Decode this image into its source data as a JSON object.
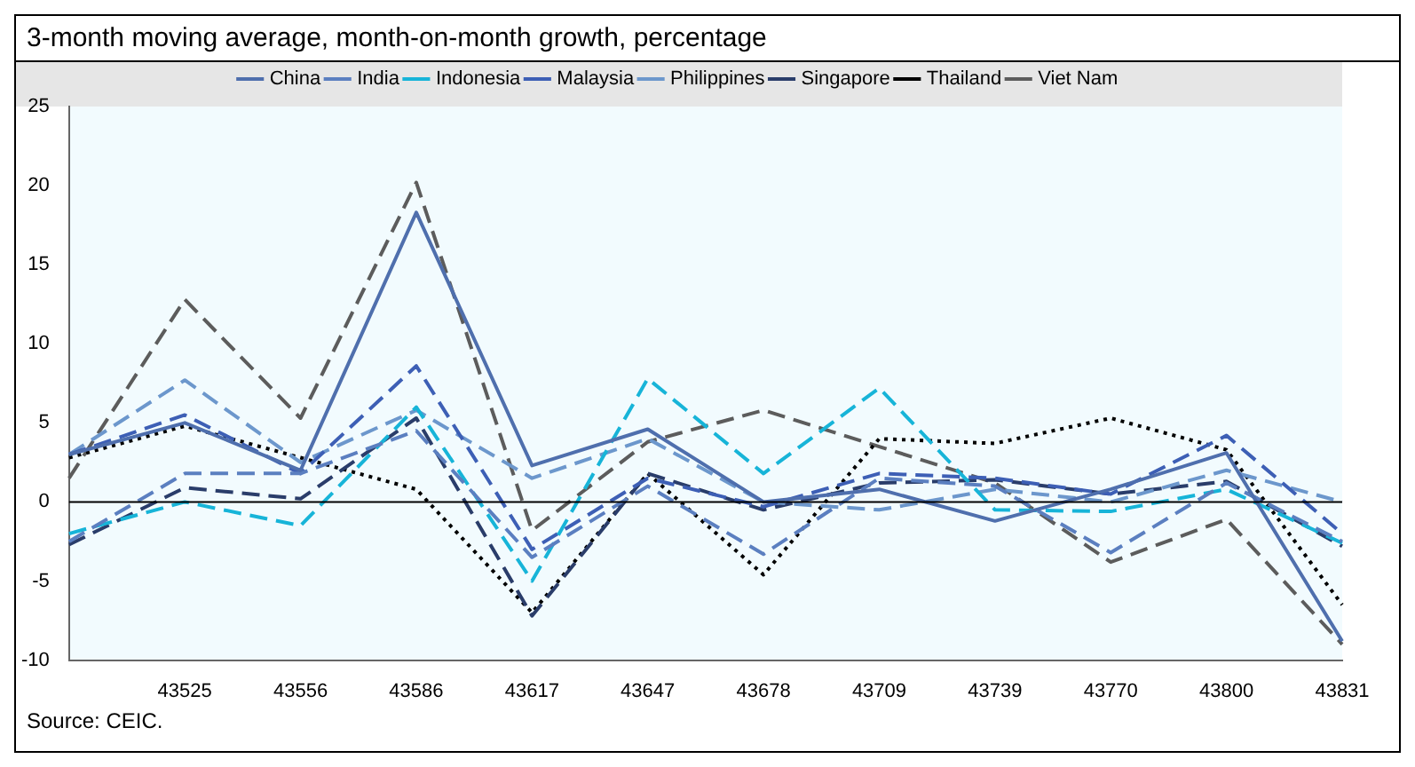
{
  "chart_data": {
    "type": "line",
    "title": "3-month moving average, month-on-month growth, percentage",
    "categories": [
      null,
      "43525",
      "43556",
      "43586",
      "43617",
      "43647",
      "43678",
      "43709",
      "43739",
      "43770",
      "43800",
      "43831"
    ],
    "series": [
      {
        "name": "China",
        "color": "#4f6fad",
        "line_style": "solid",
        "values": [
          3,
          5,
          2,
          18.3,
          2.3,
          4.6,
          0,
          0.8,
          -1.2,
          0.8,
          3.1,
          -8.8
        ]
      },
      {
        "name": "India",
        "color": "#5b7fc0",
        "line_style": "dashed",
        "values": [
          -2.5,
          1.8,
          1.8,
          4.5,
          -3.5,
          1,
          -3.3,
          1.5,
          1,
          -3.2,
          1.2,
          -2.5
        ]
      },
      {
        "name": "Indonesia",
        "color": "#17b4d8",
        "line_style": "dashed",
        "values": [
          -2,
          0,
          -1.5,
          6,
          -5,
          7.8,
          1.8,
          7.2,
          -0.5,
          -0.6,
          0.8,
          -2.6
        ]
      },
      {
        "name": "Malaysia",
        "color": "#3d5fb5",
        "line_style": "dashed",
        "values": [
          3,
          5.5,
          1.8,
          8.6,
          -3,
          1.5,
          -0.3,
          1.8,
          1.5,
          0.5,
          4.2,
          -2
        ]
      },
      {
        "name": "Philippines",
        "color": "#6c97cc",
        "line_style": "dashed",
        "values": [
          3,
          7.7,
          2.5,
          5.8,
          1.5,
          4,
          0,
          -0.5,
          0.8,
          0,
          2,
          0
        ]
      },
      {
        "name": "Singapore",
        "color": "#2a3d6a",
        "line_style": "dashed",
        "values": [
          -2.7,
          0.9,
          0.2,
          5.3,
          -7.2,
          1.8,
          -0.5,
          1.2,
          1.4,
          0.5,
          1.3,
          -2.8
        ]
      },
      {
        "name": "Thailand",
        "color": "#000000",
        "line_style": "dotted",
        "values": [
          2.8,
          4.8,
          2.8,
          0.8,
          -7,
          1.8,
          -4.6,
          4,
          3.7,
          5.3,
          3.3,
          -6.5
        ]
      },
      {
        "name": "Viet Nam",
        "color": "#5c5c5c",
        "line_style": "dashed",
        "values": [
          1.5,
          12.8,
          5.3,
          20.2,
          -1.8,
          3.8,
          5.8,
          3.5,
          1.2,
          -3.8,
          -1.1,
          -9
        ]
      }
    ],
    "ylim": [
      -10,
      25
    ],
    "yticks": [
      -10,
      -5,
      0,
      5,
      10,
      15,
      20,
      25
    ],
    "grid": false,
    "legend": "top",
    "marker": "none",
    "ref_lines": [
      {
        "axis": "y",
        "value": 0,
        "color": "#000000"
      }
    ],
    "annotations": [
      "Source: CEIC."
    ]
  }
}
